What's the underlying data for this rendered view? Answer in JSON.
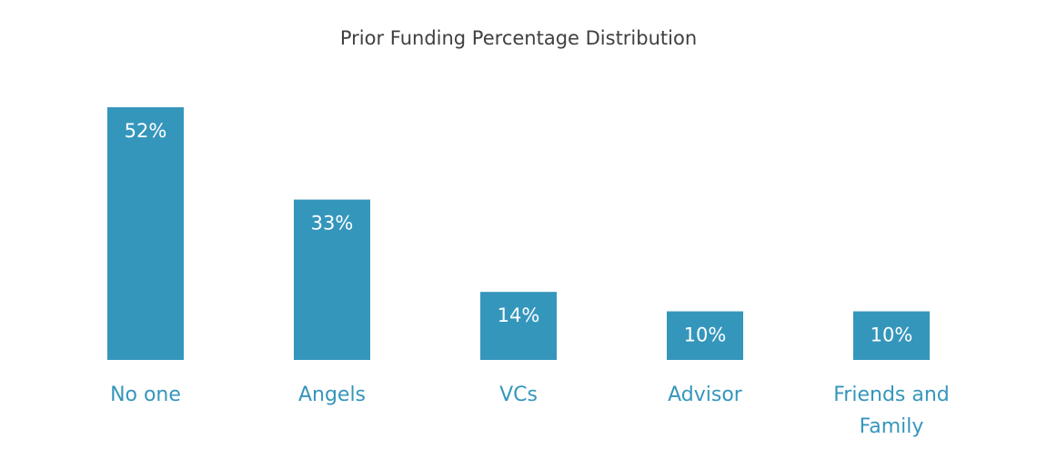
{
  "chart_data": {
    "type": "bar",
    "title": "Prior Funding Percentage Distribution",
    "categories": [
      "No one",
      "Angels",
      "VCs",
      "Advisor",
      "Friends and Family"
    ],
    "values": [
      52,
      33,
      14,
      10,
      10
    ],
    "value_labels": [
      "52%",
      "33%",
      "14%",
      "10%",
      "10%"
    ],
    "unit": "%",
    "xlabel": "",
    "ylabel": "",
    "ylim": [
      0,
      52
    ],
    "grid": false,
    "legend": "none",
    "colors": {
      "bar": "#3596bc",
      "category_label": "#3596bc",
      "title": "#404040",
      "label_inside": "#ffffff",
      "label_outside": "#3596bc"
    }
  }
}
